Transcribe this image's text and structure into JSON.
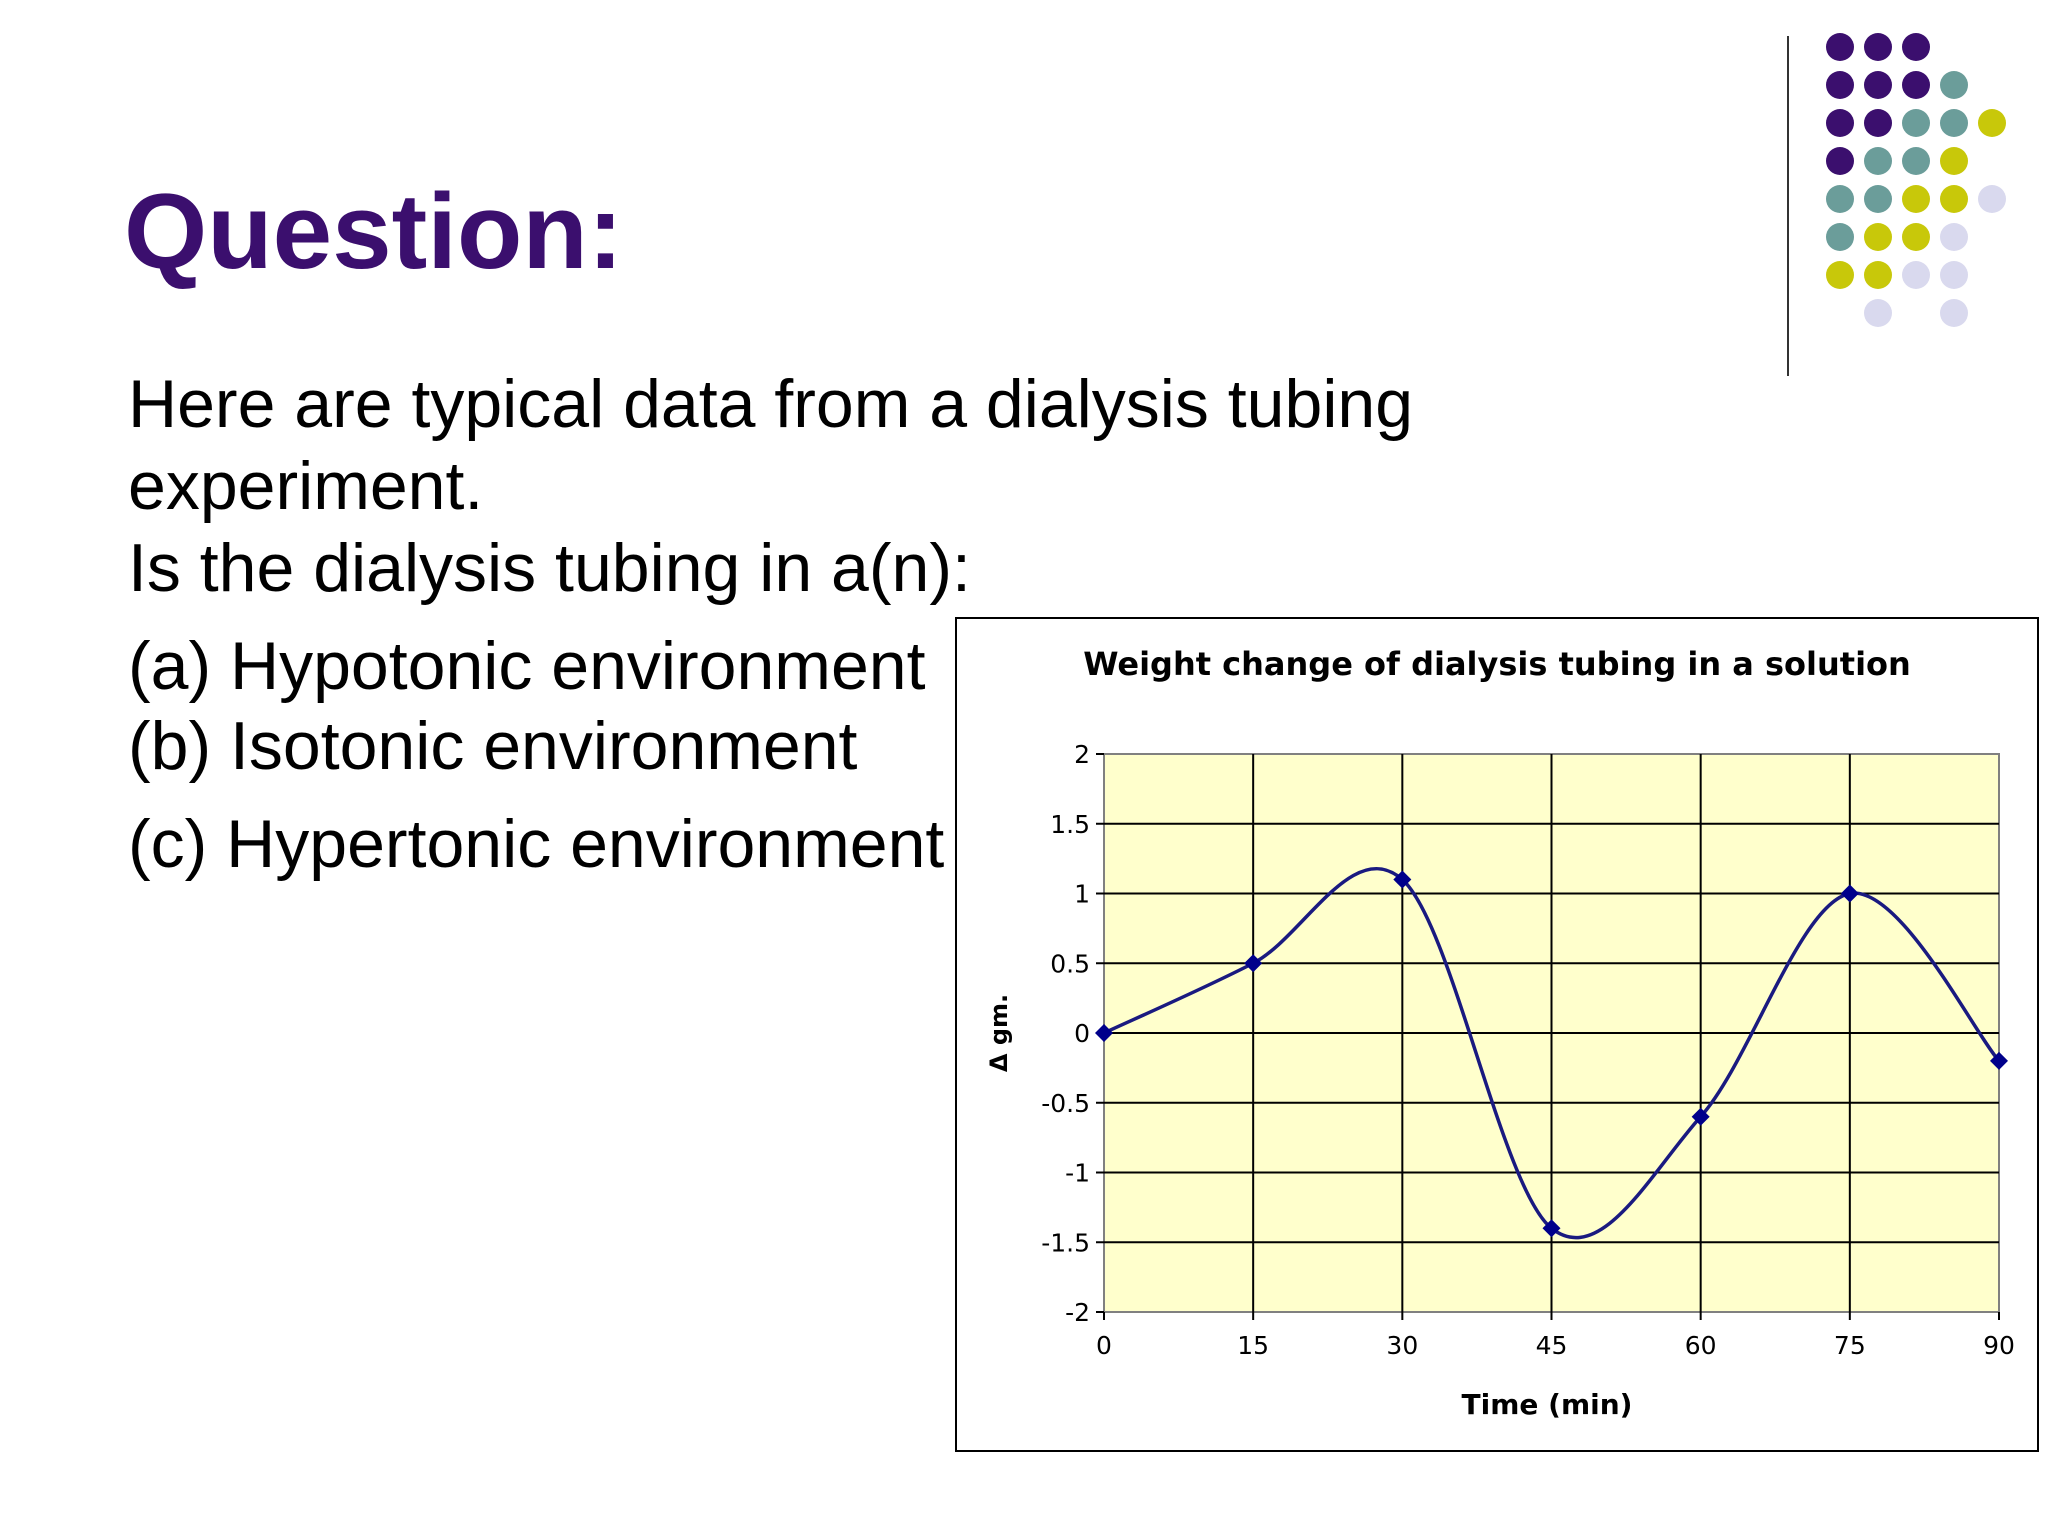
{
  "slide": {
    "title": "Question:",
    "body_lines": [
      "Here are typical data from a dialysis tubing",
      "experiment.",
      "Is the dialysis tubing in a(n):",
      "(a) Hypotonic environment",
      "(b) Isotonic environment",
      "(c) Hypertonic environment"
    ]
  },
  "colors": {
    "title": "#3b0f6e",
    "plot_background": "#ffffcc",
    "series_line": "#1a1a80",
    "marker": "#00008b",
    "dot_purple": "#3b0f6e",
    "dot_teal": "#6b9d9a",
    "dot_olive": "#c8c80a",
    "dot_lavender": "#d9d9ee"
  },
  "chart_data": {
    "type": "line",
    "title": "Weight change of dialysis tubing in a solution",
    "xlabel": "Time (min)",
    "ylabel": "Δ gm.",
    "x": [
      0,
      15,
      30,
      45,
      60,
      75,
      90
    ],
    "series": [
      {
        "values": [
          0,
          0.5,
          1.1,
          -1.4,
          -0.6,
          1.0,
          -0.2
        ]
      }
    ],
    "xlim": [
      0,
      90
    ],
    "ylim": [
      -2,
      2
    ],
    "x_ticks": [
      "0",
      "15",
      "30",
      "45",
      "60",
      "75",
      "90"
    ],
    "y_ticks": [
      "2",
      "1.5",
      "1",
      "0.5",
      "0",
      "-0.5",
      "-1",
      "-1.5",
      "-2"
    ],
    "smoothed": true,
    "grid": true,
    "legend": "none"
  }
}
